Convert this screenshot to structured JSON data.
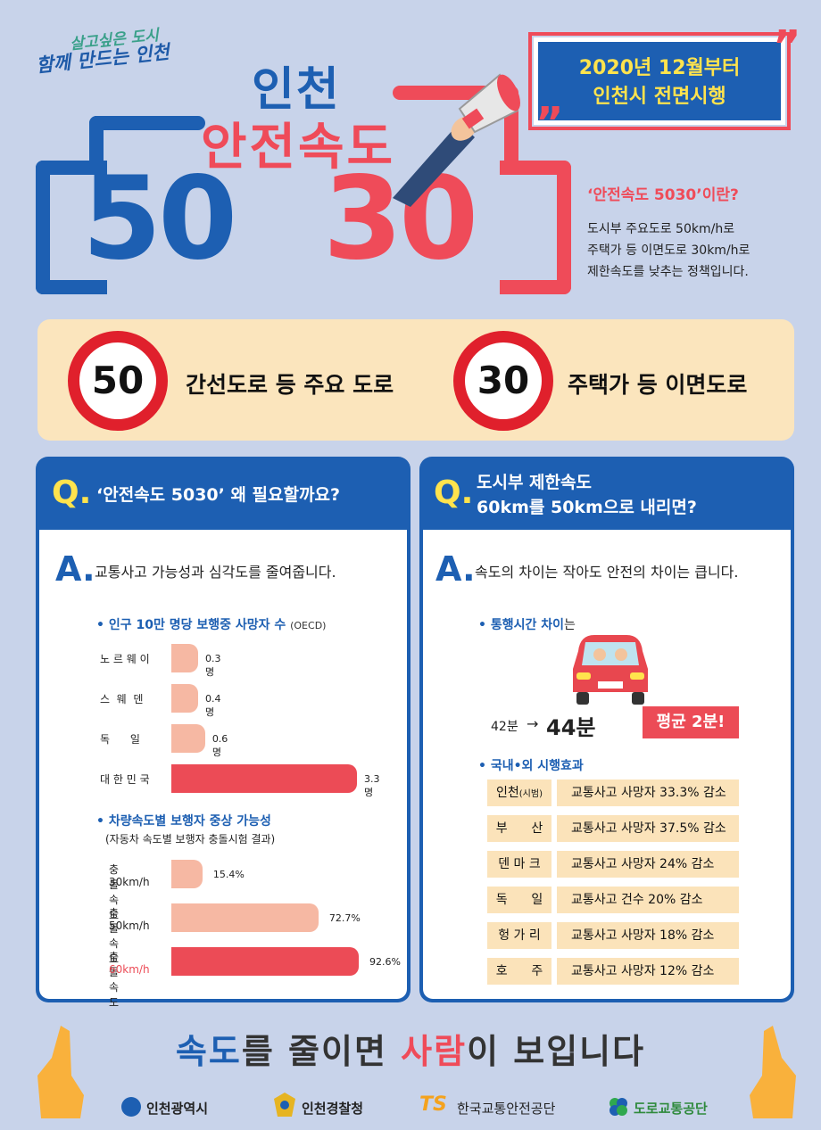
{
  "header": {
    "slogan_line1": "살고싶은 도시",
    "slogan_line2": "함께 만드는 인천",
    "title_city": "인천",
    "title_main": "안전속도",
    "num_50": "50",
    "num_30": "30",
    "notice_line1": "2020년 12월부터",
    "notice_line2": "인천시 전면시행",
    "definition_title": "‘안전속도 5030’이란?",
    "definition_lines": [
      "도시부 주요도로 50km/h로",
      "주택가 등 이면도로 30km/h로",
      "제한속도를 낮추는 정책입니다."
    ]
  },
  "speed_strip": {
    "sign_50": "50",
    "label_50": "간선도로 등 주요 도로",
    "sign_30": "30",
    "label_30": "주택가 등 이면도로"
  },
  "left_panel": {
    "q_mark": "Q.",
    "question": "‘안전속도 5030’ 왜 필요할까요?",
    "a_mark": "A.",
    "answer": "교통사고 가능성과 심각도를 줄여줍니다.",
    "chart1_title": "• 인구 10만 명당 보행중 사망자 수",
    "chart1_source": "(OECD)",
    "chart2_title": "• 차량속도별 보행자 중상 가능성",
    "chart2_note": "(자동차 속도별 보행자 충돌시험 결과)"
  },
  "chart_data": [
    {
      "type": "bar",
      "title": "인구 10만 명당 보행중 사망자 수",
      "categories": [
        "노 르 웨 이",
        "스  웨  덴",
        "독      일",
        "대 한 민 국"
      ],
      "values": [
        0.3,
        0.4,
        0.6,
        3.3
      ],
      "value_labels": [
        "0.3명",
        "0.4명",
        "0.6명",
        "3.3명"
      ],
      "unit": "명",
      "colors": [
        "#f6b8a3",
        "#f6b8a3",
        "#f6b8a3",
        "#ec4b56"
      ]
    },
    {
      "type": "bar",
      "title": "차량속도별 보행자 중상 가능성",
      "categories": [
        [
          "충돌속도",
          "30km/h"
        ],
        [
          "충돌속도",
          "50km/h"
        ],
        [
          "충돌속도",
          "60km/h"
        ]
      ],
      "values": [
        15.4,
        72.7,
        92.6
      ],
      "value_labels": [
        "15.4%",
        "72.7%",
        "92.6%"
      ],
      "unit": "%",
      "colors": [
        "#f6b8a3",
        "#f6b8a3",
        "#ec4b56"
      ]
    }
  ],
  "right_panel": {
    "q_mark": "Q.",
    "question_line1": "도시부 제한속도",
    "question_line2": "60km를 50km으로 내리면?",
    "a_mark": "A.",
    "answer": "속도의 차이는 작아도 안전의 차이는 큽니다.",
    "travel_title": "• 통행시간 차이",
    "travel_suffix": "는",
    "time_before": "42분",
    "arrow": "→",
    "time_after": "44분",
    "avg_badge": "평균 2분!",
    "effects_title": "• 국내•외 시행효과",
    "effects": [
      {
        "place": "인천",
        "place_note": "(시범)",
        "effect": "교통사고 사망자 33.3% 감소"
      },
      {
        "place": "부      산",
        "place_note": "",
        "effect": "교통사고 사망자 37.5% 감소"
      },
      {
        "place": "덴 마 크",
        "place_note": "",
        "effect": "교통사고 사망자 24% 감소"
      },
      {
        "place": "독      일",
        "place_note": "",
        "effect": "교통사고 건수 20% 감소"
      },
      {
        "place": "헝 가 리",
        "place_note": "",
        "effect": "교통사고 사망자 18% 감소"
      },
      {
        "place": "호      주",
        "place_note": "",
        "effect": "교통사고 사망자 12% 감소"
      }
    ]
  },
  "footer": {
    "slogan_a": "속도",
    "slogan_b": "를 줄이면 ",
    "slogan_c": "사람",
    "slogan_d": "이 보입니다",
    "logos": [
      "인천광역시",
      "인천경찰청",
      "한국교통안전공단",
      "도로교통공단"
    ],
    "logo_ts": "TS"
  },
  "colors": {
    "blue": "#1d5fb2",
    "red": "#ef4b59",
    "yellow": "#ffe34d",
    "cream": "#fbe5bd",
    "background": "#c8d3ea"
  }
}
